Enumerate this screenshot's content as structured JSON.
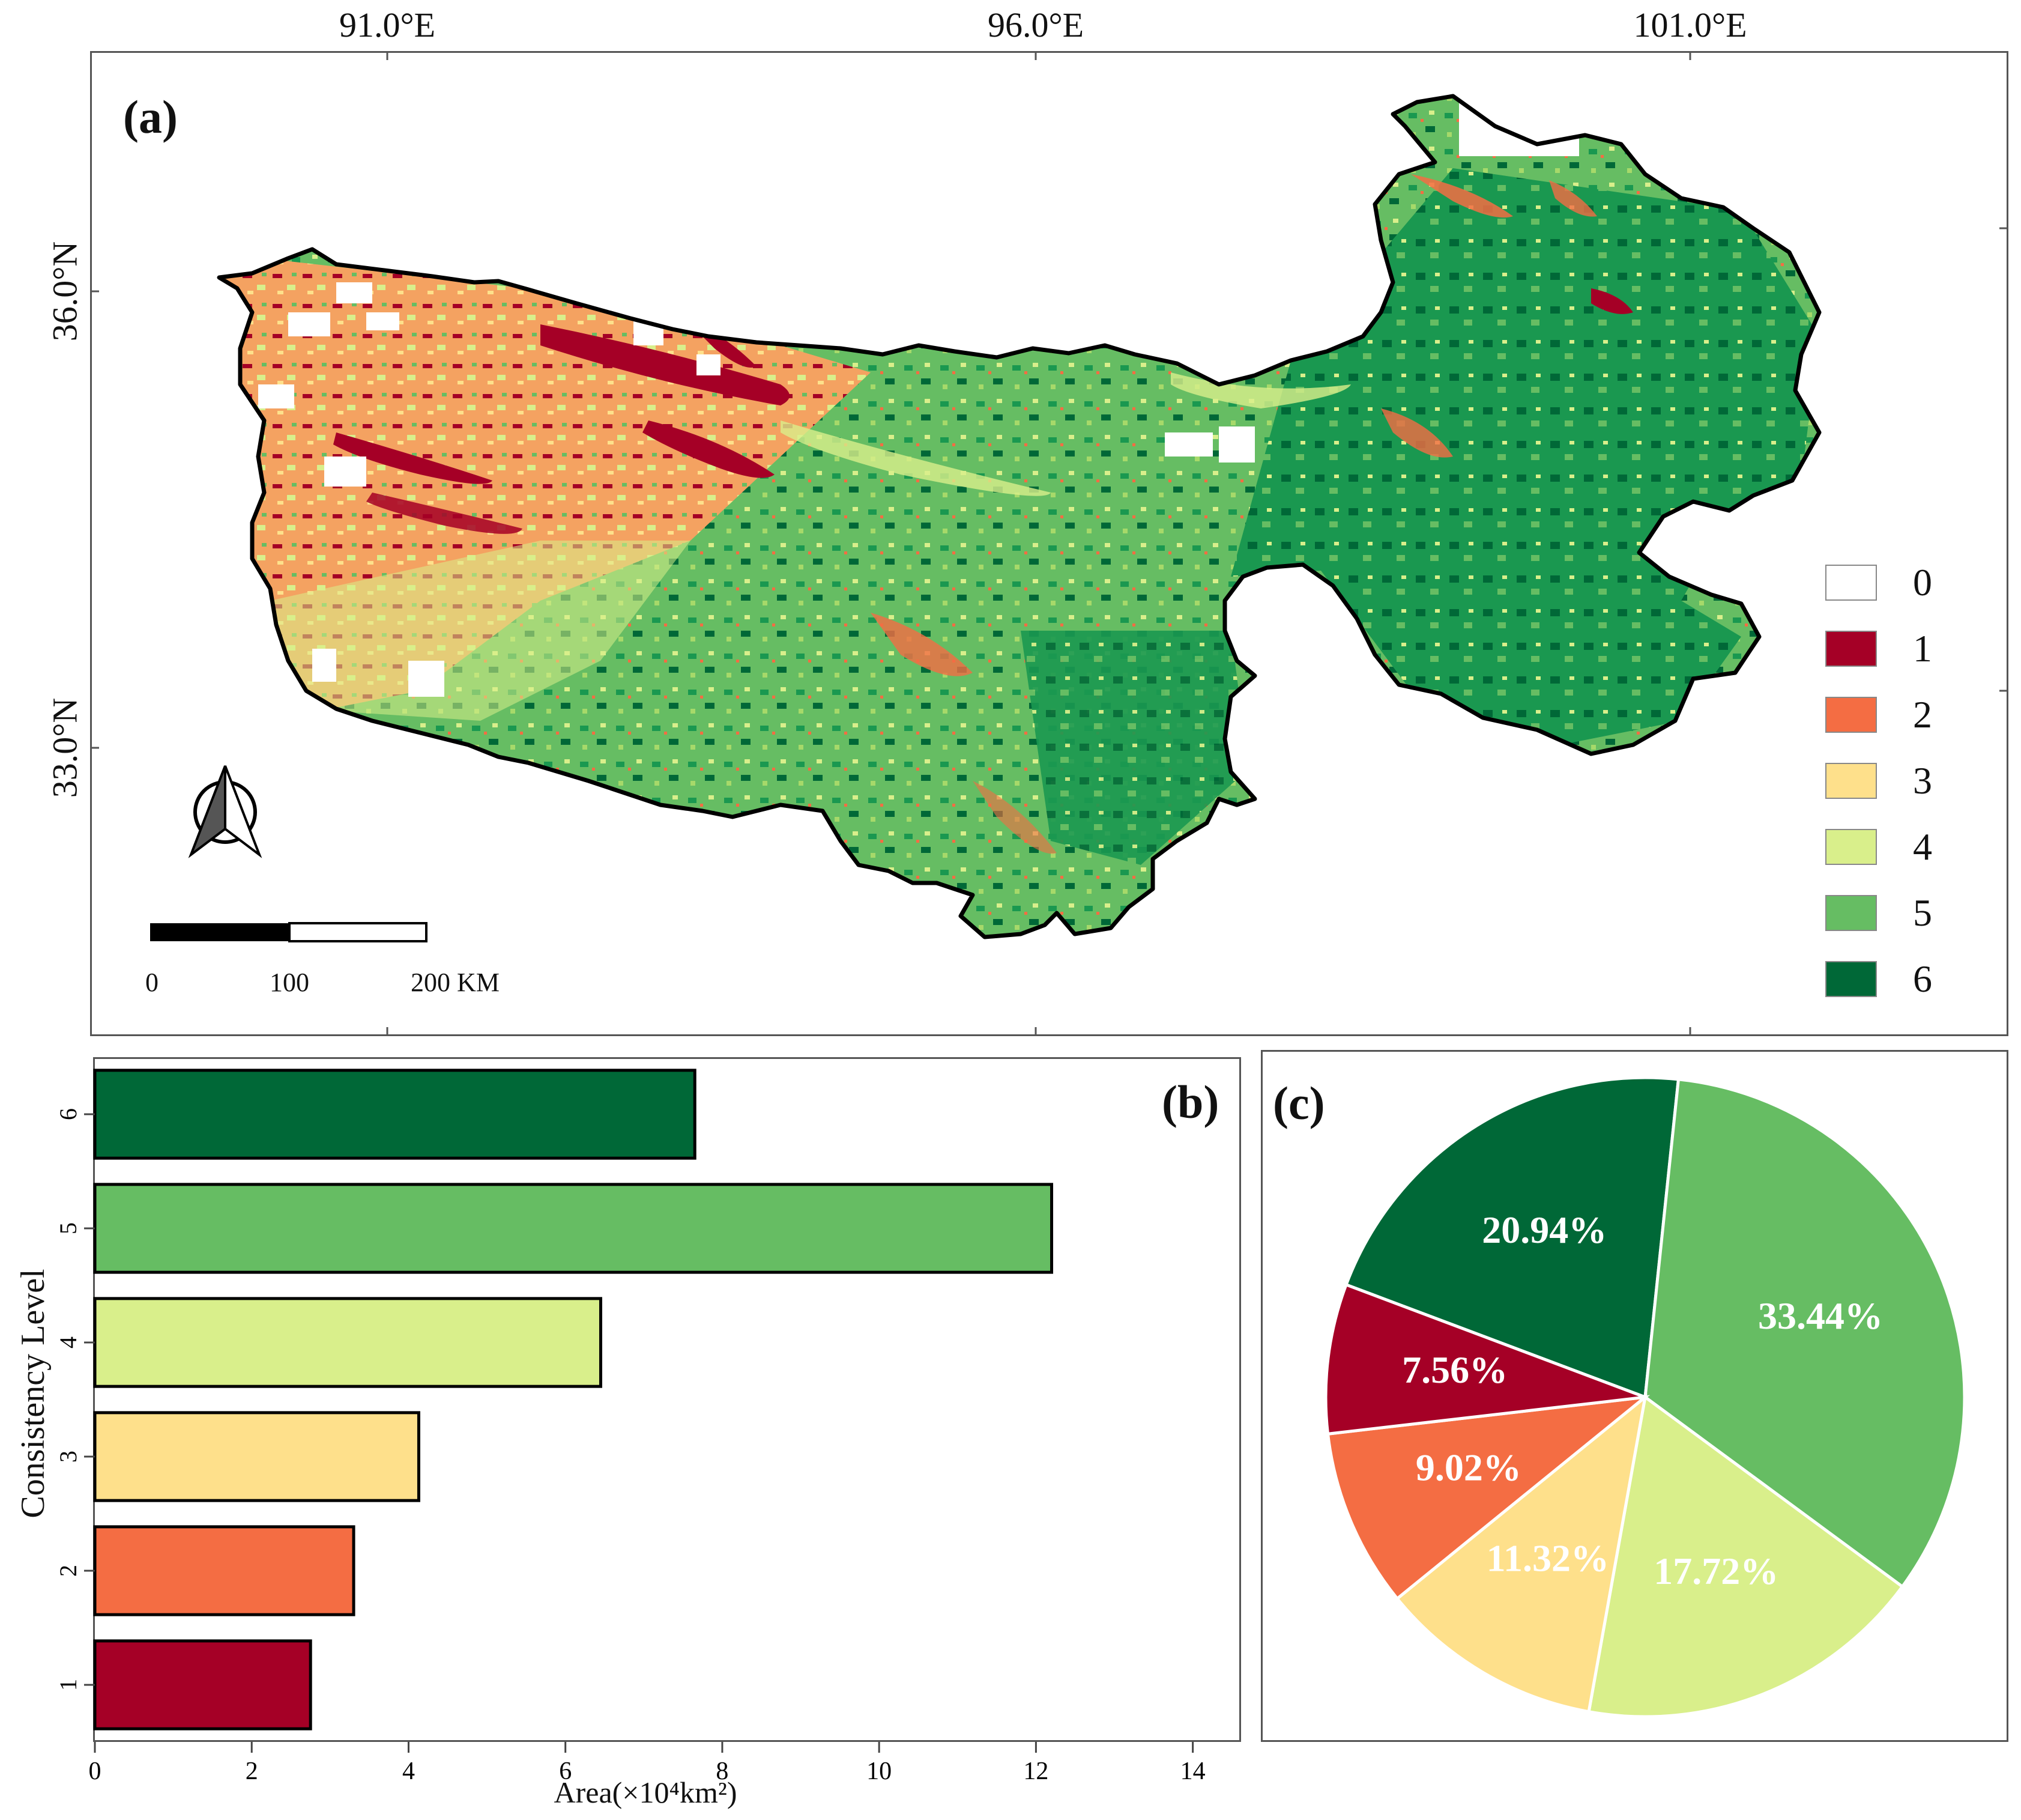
{
  "map": {
    "panel_tag": "(a)",
    "lon_labels": [
      "91.0°E",
      "96.0°E",
      "101.0°E"
    ],
    "lat_labels": [
      "36.0°N",
      "33.0°N"
    ],
    "legend": [
      {
        "label": "0",
        "color": "#ffffff"
      },
      {
        "label": "1",
        "color": "#a50026"
      },
      {
        "label": "2",
        "color": "#f46d43"
      },
      {
        "label": "3",
        "color": "#fee08b"
      },
      {
        "label": "4",
        "color": "#d9ef8b"
      },
      {
        "label": "5",
        "color": "#66bd63"
      },
      {
        "label": "6",
        "color": "#006837"
      }
    ],
    "scale_bar": {
      "labels": [
        "0",
        "100",
        "200 KM"
      ]
    },
    "north_arrow_icon": "north-arrow-icon"
  },
  "chart_data": [
    {
      "type": "bar",
      "orientation": "horizontal",
      "panel_tag": "(b)",
      "categories": [
        "1",
        "2",
        "3",
        "4",
        "5",
        "6"
      ],
      "values": [
        2.75,
        3.3,
        4.13,
        6.45,
        12.2,
        7.65
      ],
      "colors": [
        "#a50026",
        "#f46d43",
        "#fee08b",
        "#d9ef8b",
        "#66bd63",
        "#006837"
      ],
      "xlabel": "Area(×10⁴km²)",
      "ylabel": "Consistency Level",
      "xlim": [
        0,
        14.6
      ],
      "xticks": [
        "0",
        "2",
        "4",
        "6",
        "8",
        "10",
        "12",
        "14"
      ],
      "grid": false
    },
    {
      "type": "pie",
      "panel_tag": "(c)",
      "labels": [
        "20.94%",
        "33.44%",
        "17.72%",
        "11.32%",
        "9.02%",
        "7.56%"
      ],
      "levels": [
        "6",
        "5",
        "4",
        "3",
        "2",
        "1"
      ],
      "values": [
        20.94,
        33.44,
        17.72,
        11.32,
        9.02,
        7.56
      ],
      "colors": [
        "#006837",
        "#66bd63",
        "#d9ef8b",
        "#fee08b",
        "#f46d43",
        "#a50026"
      ]
    }
  ]
}
